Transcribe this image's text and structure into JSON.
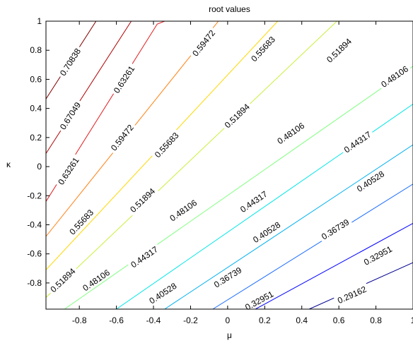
{
  "chart_data": {
    "type": "contour",
    "title": "root values",
    "xlabel": "μ",
    "ylabel": "κ",
    "xlim": [
      -0.98,
      1.0
    ],
    "ylim": [
      -0.98,
      1.0
    ],
    "xticks": [
      "-0.8",
      "-0.6",
      "-0.4",
      "-0.2",
      "0",
      "0.2",
      "0.4",
      "0.6",
      "0.8",
      "1"
    ],
    "yticks": [
      "1",
      "0.8",
      "0.6",
      "0.4",
      "0.2",
      "0",
      "-0.2",
      "-0.4",
      "-0.6",
      "-0.8"
    ],
    "colormap": "jet",
    "levels": [
      {
        "value": 0.70838,
        "label": "0.70838",
        "color": "#800000",
        "points": [
          [
            -0.98,
            0.465
          ],
          [
            -0.71,
            1.0
          ]
        ],
        "label_at": [
          [
            -0.85,
            0.72
          ]
        ]
      },
      {
        "value": 0.67049,
        "label": "0.67049",
        "color": "#b00000",
        "points": [
          [
            -0.98,
            0.09
          ],
          [
            -0.52,
            1.0
          ]
        ],
        "label_at": [
          [
            -0.85,
            0.35
          ]
        ]
      },
      {
        "value": 0.63261,
        "label": "0.63261",
        "color": "#e31a1c",
        "points": [
          [
            -0.98,
            -0.24
          ],
          [
            -0.38,
            0.98
          ],
          [
            -0.34,
            1.0
          ]
        ],
        "label_at": [
          [
            -0.86,
            -0.03
          ],
          [
            -0.56,
            0.6
          ]
        ]
      },
      {
        "value": 0.59472,
        "label": "0.59472",
        "color": "#ff7f0e",
        "points": [
          [
            -0.98,
            -0.48
          ],
          [
            -0.05,
            1.0
          ]
        ],
        "label_at": [
          [
            -0.57,
            0.2
          ],
          [
            -0.13,
            0.85
          ]
        ]
      },
      {
        "value": 0.55683,
        "label": "0.55683",
        "color": "#ffd700",
        "points": [
          [
            -0.98,
            -0.71
          ],
          [
            0.27,
            1.0
          ]
        ],
        "label_at": [
          [
            -0.79,
            -0.38
          ],
          [
            -0.33,
            0.15
          ],
          [
            0.19,
            0.81
          ]
        ]
      },
      {
        "value": 0.51894,
        "label": "0.51894",
        "color": "#c8f03a",
        "points": [
          [
            -0.98,
            -0.9
          ],
          [
            0.59,
            1.0
          ]
        ],
        "label_at": [
          [
            -0.89,
            -0.78
          ],
          [
            -0.46,
            -0.23
          ],
          [
            0.05,
            0.35
          ],
          [
            0.6,
            0.8
          ]
        ]
      },
      {
        "value": 0.48106,
        "label": "0.48106",
        "color": "#7fff7f",
        "points": [
          [
            -0.88,
            -0.98
          ],
          [
            1.0,
            0.69
          ]
        ],
        "label_at": [
          [
            -0.71,
            -0.78
          ],
          [
            -0.24,
            -0.3
          ],
          [
            0.34,
            0.23
          ],
          [
            0.9,
            0.62
          ]
        ]
      },
      {
        "value": 0.44317,
        "label": "0.44317",
        "color": "#00e5e5",
        "points": [
          [
            -0.6,
            -0.98
          ],
          [
            1.0,
            0.43
          ]
        ],
        "label_at": [
          [
            -0.45,
            -0.62
          ],
          [
            0.14,
            -0.24
          ],
          [
            0.7,
            0.17
          ]
        ]
      },
      {
        "value": 0.40528,
        "label": "0.40528",
        "color": "#00b0f0",
        "points": [
          [
            -0.34,
            -0.98
          ],
          [
            1.0,
            0.15
          ]
        ],
        "label_at": [
          [
            -0.35,
            -0.87
          ],
          [
            0.21,
            -0.45
          ],
          [
            0.77,
            -0.1
          ]
        ]
      },
      {
        "value": 0.36739,
        "label": "0.36739",
        "color": "#1f6fff",
        "points": [
          [
            -0.08,
            -0.98
          ],
          [
            1.0,
            -0.12
          ]
        ],
        "label_at": [
          [
            0.0,
            -0.76
          ],
          [
            0.58,
            -0.43
          ]
        ]
      },
      {
        "value": 0.32951,
        "label": "0.32951",
        "color": "#0000ff",
        "points": [
          [
            0.15,
            -0.98
          ],
          [
            1.0,
            -0.39
          ]
        ],
        "label_at": [
          [
            0.17,
            -0.92
          ],
          [
            0.81,
            -0.61
          ]
        ]
      },
      {
        "value": 0.29162,
        "label": "0.29162",
        "color": "#000090",
        "points": [
          [
            0.44,
            -0.98
          ],
          [
            1.0,
            -0.66
          ]
        ],
        "label_at": [
          [
            0.67,
            -0.88
          ]
        ]
      }
    ]
  }
}
